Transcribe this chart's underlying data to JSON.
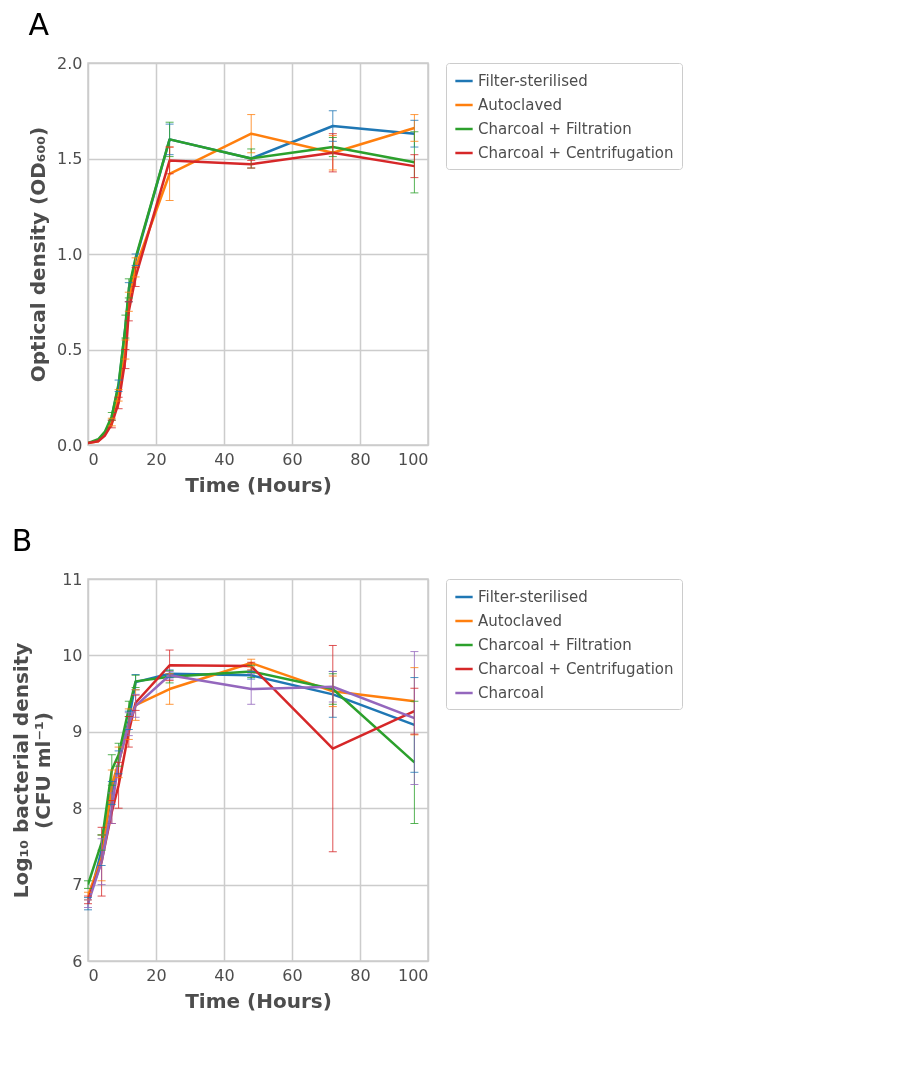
{
  "chart_data": [
    {
      "type": "line",
      "title": "A",
      "xlabel": "Time (Hours)",
      "ylabel": "Optical density (OD₆₀₀)",
      "x": [
        0,
        3,
        5,
        7,
        9,
        11,
        12,
        14,
        24,
        48,
        72,
        96
      ],
      "xlim": [
        0,
        100
      ],
      "xticks": [
        0,
        20,
        40,
        60,
        80,
        100
      ],
      "ylim": [
        0,
        2
      ],
      "yticks": [
        {
          "value": 0,
          "label": "0.0"
        },
        {
          "value": 0.5,
          "label": "0.5"
        },
        {
          "value": 1,
          "label": "1.0"
        },
        {
          "value": 1.5,
          "label": "1.5"
        },
        {
          "value": 2,
          "label": "2.0"
        }
      ],
      "grid": true,
      "legend": "right",
      "line_style": "solid",
      "marker": "none",
      "series": [
        {
          "name": "Filter-sterilised",
          "color": "#1f77b4",
          "values": [
            null,
            null,
            null,
            0.15,
            0.31,
            0.62,
            0.8,
            0.97,
            1.6,
            1.5,
            1.67,
            1.63
          ],
          "errors": [
            null,
            null,
            null,
            null,
            0.03,
            null,
            0.05,
            0.03,
            0.08,
            null,
            0.08,
            0.07
          ]
        },
        {
          "name": "Autoclaved",
          "color": "#ff7f0e",
          "values": [
            0.01,
            0.02,
            0.06,
            0.12,
            0.26,
            0.5,
            0.75,
            0.93,
            1.42,
            1.63,
            1.53,
            1.66
          ],
          "errors": [
            null,
            null,
            null,
            0.02,
            0.03,
            0.05,
            0.05,
            0.05,
            0.14,
            0.1,
            0.09,
            0.07
          ]
        },
        {
          "name": "Charcoal + Filtration",
          "color": "#2ca02c",
          "values": [
            0.01,
            0.03,
            0.07,
            0.15,
            0.32,
            0.62,
            0.82,
            0.98,
            1.6,
            1.5,
            1.56,
            1.48
          ],
          "errors": [
            null,
            null,
            null,
            0.02,
            null,
            0.06,
            0.05,
            null,
            0.09,
            0.05,
            0.05,
            0.16
          ]
        },
        {
          "name": "Charcoal + Centrifugation",
          "color": "#d62728",
          "values": [
            0.01,
            0.02,
            0.05,
            0.11,
            0.22,
            0.45,
            0.7,
            0.88,
            1.49,
            1.47,
            1.53,
            1.46
          ],
          "errors": [
            null,
            null,
            null,
            0.02,
            0.03,
            0.05,
            0.05,
            0.05,
            0.07,
            0.02,
            0.1,
            0.06
          ]
        }
      ]
    },
    {
      "type": "line",
      "title": "B",
      "xlabel": "Time (Hours)",
      "ylabel": "Log₁₀ bacterial density\n(CFU ml⁻¹)",
      "x": [
        0,
        4,
        7,
        9,
        12,
        14,
        24,
        48,
        72,
        96
      ],
      "xlim": [
        0,
        100
      ],
      "xticks": [
        0,
        20,
        40,
        60,
        80,
        100
      ],
      "ylim": [
        6,
        11
      ],
      "yticks": [
        6,
        7,
        8,
        9,
        10,
        11
      ],
      "grid": true,
      "legend": "right",
      "line_style": "solid",
      "marker": "none",
      "series": [
        {
          "name": "Filter-sterilised",
          "color": "#1f77b4",
          "values": [
            6.75,
            7.45,
            8.2,
            8.6,
            9.15,
            9.65,
            9.76,
            9.74,
            9.49,
            9.09
          ],
          "errors": [
            0.08,
            0.2,
            0.15,
            0.15,
            0.12,
            0.1,
            0.05,
            0.05,
            0.3,
            0.62
          ]
        },
        {
          "name": "Autoclaved",
          "color": "#ff7f0e",
          "values": [
            6.85,
            7.35,
            8.3,
            8.6,
            9.1,
            9.35,
            9.56,
            9.9,
            9.53,
            9.4
          ],
          "errors": [
            0.05,
            0.3,
            0.2,
            0.2,
            0.2,
            0.2,
            0.2,
            0.05,
            0.2,
            0.44
          ]
        },
        {
          "name": "Charcoal + Filtration",
          "color": "#2ca02c",
          "values": [
            7.0,
            7.55,
            8.5,
            8.7,
            9.3,
            9.66,
            9.72,
            9.79,
            9.56,
            8.6
          ],
          "errors": [
            0.05,
            0.1,
            0.2,
            0.15,
            0.1,
            0.08,
            0.08,
            0.08,
            0.2,
            0.8
          ]
        },
        {
          "name": "Charcoal + Centrifugation",
          "color": "#d62728",
          "values": [
            6.8,
            7.3,
            7.95,
            8.3,
            9.0,
            9.38,
            9.87,
            9.86,
            8.78,
            9.27
          ],
          "errors": [
            0.05,
            0.45,
            0.15,
            0.3,
            0.2,
            0.1,
            0.2,
            0.05,
            1.35,
            0.3
          ]
        },
        {
          "name": "Charcoal",
          "color": "#9467bd",
          "values": [
            6.75,
            7.3,
            8.0,
            8.6,
            9.1,
            9.34,
            9.74,
            9.56,
            9.59,
            9.18
          ],
          "errors": [
            0.05,
            0.3,
            0.2,
            null,
            0.15,
            0.15,
            0.05,
            0.2,
            0.2,
            0.87
          ]
        }
      ]
    }
  ]
}
